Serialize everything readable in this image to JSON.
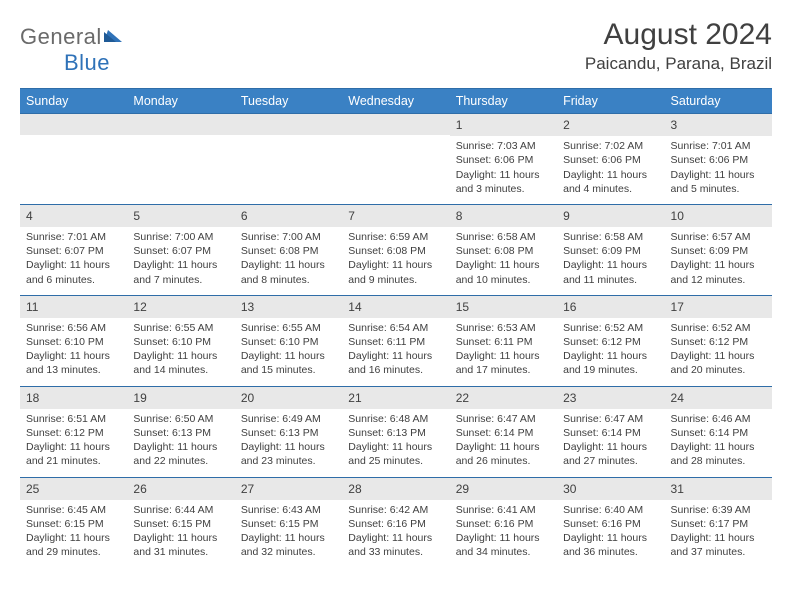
{
  "logo": {
    "part1": "General",
    "part2": "Blue"
  },
  "title": "August 2024",
  "location": "Paicandu, Parana, Brazil",
  "colors": {
    "header_bg": "#3a81c4",
    "header_border": "#2f6da8",
    "daynum_bg": "#e8e8e8",
    "text": "#3f3f3f",
    "logo_gray": "#6a6a6a",
    "logo_blue": "#2f72b8"
  },
  "dayNames": [
    "Sunday",
    "Monday",
    "Tuesday",
    "Wednesday",
    "Thursday",
    "Friday",
    "Saturday"
  ],
  "leadingBlanks": 4,
  "days": [
    {
      "n": 1,
      "sunrise": "7:03 AM",
      "sunset": "6:06 PM",
      "daylight": "11 hours and 3 minutes."
    },
    {
      "n": 2,
      "sunrise": "7:02 AM",
      "sunset": "6:06 PM",
      "daylight": "11 hours and 4 minutes."
    },
    {
      "n": 3,
      "sunrise": "7:01 AM",
      "sunset": "6:06 PM",
      "daylight": "11 hours and 5 minutes."
    },
    {
      "n": 4,
      "sunrise": "7:01 AM",
      "sunset": "6:07 PM",
      "daylight": "11 hours and 6 minutes."
    },
    {
      "n": 5,
      "sunrise": "7:00 AM",
      "sunset": "6:07 PM",
      "daylight": "11 hours and 7 minutes."
    },
    {
      "n": 6,
      "sunrise": "7:00 AM",
      "sunset": "6:08 PM",
      "daylight": "11 hours and 8 minutes."
    },
    {
      "n": 7,
      "sunrise": "6:59 AM",
      "sunset": "6:08 PM",
      "daylight": "11 hours and 9 minutes."
    },
    {
      "n": 8,
      "sunrise": "6:58 AM",
      "sunset": "6:08 PM",
      "daylight": "11 hours and 10 minutes."
    },
    {
      "n": 9,
      "sunrise": "6:58 AM",
      "sunset": "6:09 PM",
      "daylight": "11 hours and 11 minutes."
    },
    {
      "n": 10,
      "sunrise": "6:57 AM",
      "sunset": "6:09 PM",
      "daylight": "11 hours and 12 minutes."
    },
    {
      "n": 11,
      "sunrise": "6:56 AM",
      "sunset": "6:10 PM",
      "daylight": "11 hours and 13 minutes."
    },
    {
      "n": 12,
      "sunrise": "6:55 AM",
      "sunset": "6:10 PM",
      "daylight": "11 hours and 14 minutes."
    },
    {
      "n": 13,
      "sunrise": "6:55 AM",
      "sunset": "6:10 PM",
      "daylight": "11 hours and 15 minutes."
    },
    {
      "n": 14,
      "sunrise": "6:54 AM",
      "sunset": "6:11 PM",
      "daylight": "11 hours and 16 minutes."
    },
    {
      "n": 15,
      "sunrise": "6:53 AM",
      "sunset": "6:11 PM",
      "daylight": "11 hours and 17 minutes."
    },
    {
      "n": 16,
      "sunrise": "6:52 AM",
      "sunset": "6:12 PM",
      "daylight": "11 hours and 19 minutes."
    },
    {
      "n": 17,
      "sunrise": "6:52 AM",
      "sunset": "6:12 PM",
      "daylight": "11 hours and 20 minutes."
    },
    {
      "n": 18,
      "sunrise": "6:51 AM",
      "sunset": "6:12 PM",
      "daylight": "11 hours and 21 minutes."
    },
    {
      "n": 19,
      "sunrise": "6:50 AM",
      "sunset": "6:13 PM",
      "daylight": "11 hours and 22 minutes."
    },
    {
      "n": 20,
      "sunrise": "6:49 AM",
      "sunset": "6:13 PM",
      "daylight": "11 hours and 23 minutes."
    },
    {
      "n": 21,
      "sunrise": "6:48 AM",
      "sunset": "6:13 PM",
      "daylight": "11 hours and 25 minutes."
    },
    {
      "n": 22,
      "sunrise": "6:47 AM",
      "sunset": "6:14 PM",
      "daylight": "11 hours and 26 minutes."
    },
    {
      "n": 23,
      "sunrise": "6:47 AM",
      "sunset": "6:14 PM",
      "daylight": "11 hours and 27 minutes."
    },
    {
      "n": 24,
      "sunrise": "6:46 AM",
      "sunset": "6:14 PM",
      "daylight": "11 hours and 28 minutes."
    },
    {
      "n": 25,
      "sunrise": "6:45 AM",
      "sunset": "6:15 PM",
      "daylight": "11 hours and 29 minutes."
    },
    {
      "n": 26,
      "sunrise": "6:44 AM",
      "sunset": "6:15 PM",
      "daylight": "11 hours and 31 minutes."
    },
    {
      "n": 27,
      "sunrise": "6:43 AM",
      "sunset": "6:15 PM",
      "daylight": "11 hours and 32 minutes."
    },
    {
      "n": 28,
      "sunrise": "6:42 AM",
      "sunset": "6:16 PM",
      "daylight": "11 hours and 33 minutes."
    },
    {
      "n": 29,
      "sunrise": "6:41 AM",
      "sunset": "6:16 PM",
      "daylight": "11 hours and 34 minutes."
    },
    {
      "n": 30,
      "sunrise": "6:40 AM",
      "sunset": "6:16 PM",
      "daylight": "11 hours and 36 minutes."
    },
    {
      "n": 31,
      "sunrise": "6:39 AM",
      "sunset": "6:17 PM",
      "daylight": "11 hours and 37 minutes."
    }
  ],
  "labels": {
    "sunrise": "Sunrise: ",
    "sunset": "Sunset: ",
    "daylight": "Daylight: "
  }
}
